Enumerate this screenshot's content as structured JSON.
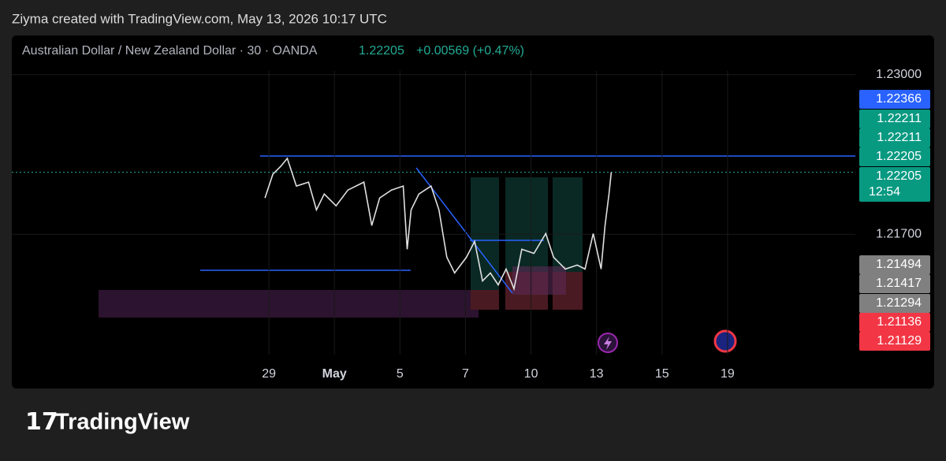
{
  "header": {
    "credit": "Ziyma created with TradingView.com, May 13, 2026 10:17 UTC"
  },
  "footer": {
    "brand": "TradingView"
  },
  "chart_data": {
    "type": "line",
    "title": "Australian Dollar / New Zealand Dollar · 30 · OANDA",
    "price": "1.22205",
    "change": "+0.00569 (+0.47%)",
    "color": "#e0e0e0",
    "x": [
      -0.12,
      0.12,
      0.36,
      0.56,
      0.84,
      1.21,
      1.45,
      1.69,
      2.05,
      2.41,
      2.9,
      3.14,
      3.38,
      3.74,
      4.1,
      4.22,
      4.34,
      4.58,
      4.95,
      5.19,
      5.43,
      5.67,
      6.03,
      6.28,
      6.52,
      6.76,
      7.0,
      7.24,
      7.48,
      7.72,
      8.09,
      8.45,
      8.69,
      9.05,
      9.41,
      9.65,
      9.9,
      10.14,
      10.26,
      10.38,
      10.45
    ],
    "values": [
      1.21996,
      1.22189,
      1.22253,
      1.22318,
      1.22093,
      1.22125,
      1.21899,
      1.22028,
      1.21932,
      1.2206,
      1.22125,
      1.21771,
      1.21996,
      1.2206,
      1.22093,
      1.21578,
      1.21899,
      1.22028,
      1.22093,
      1.21899,
      1.21513,
      1.21385,
      1.21513,
      1.21642,
      1.2132,
      1.21385,
      1.21288,
      1.21417,
      1.21256,
      1.21578,
      1.21545,
      1.21706,
      1.21513,
      1.21417,
      1.21449,
      1.21417,
      1.21706,
      1.21417,
      1.21771,
      1.22028,
      1.22205
    ],
    "xlim": [
      -5.2,
      17.9
    ],
    "xticks": [
      {
        "value": 0,
        "label": "29"
      },
      {
        "value": 2,
        "label": "May"
      },
      {
        "value": 4,
        "label": "5"
      },
      {
        "value": 6,
        "label": "7"
      },
      {
        "value": 8,
        "label": "10"
      },
      {
        "value": 10,
        "label": "13"
      },
      {
        "value": 12,
        "label": "15"
      },
      {
        "value": 14,
        "label": "19"
      }
    ],
    "ylim": [
      1.233,
      1.2072
    ],
    "yticks": [
      {
        "value": 1.23,
        "label": "1.23000"
      },
      {
        "value": 1.217,
        "label": "1.21700"
      }
    ],
    "price_labels": [
      {
        "text": "1.22366",
        "color": "#2962ff"
      },
      {
        "text": "1.22211",
        "color": "#089981"
      },
      {
        "text": "1.22211",
        "color": "#089981"
      },
      {
        "text": "1.22205",
        "color": "#089981"
      },
      {
        "text": "1.22205",
        "color": "#089981",
        "time": "12:54"
      },
      {
        "text": "1.21494",
        "color": "#808080"
      },
      {
        "text": "1.21417",
        "color": "#808080"
      },
      {
        "text": "1.21294",
        "color": "#808080"
      },
      {
        "text": "1.21136",
        "color": "#f23645"
      },
      {
        "text": "1.21129",
        "color": "#f23645"
      }
    ]
  }
}
